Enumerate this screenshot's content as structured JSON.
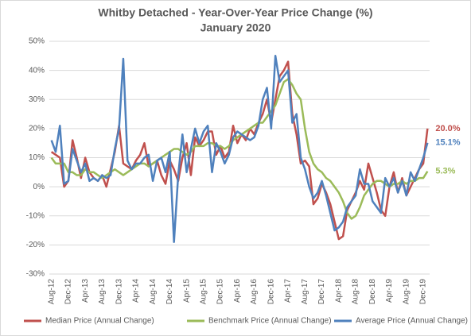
{
  "chart_data": {
    "type": "line",
    "title": "Whitby Detached - Year-Over-Year Price Change (%)",
    "subtitle": "January 2020",
    "categories": [
      "Aug-12",
      null,
      null,
      null,
      "Dec-12",
      null,
      null,
      null,
      "Apr-13",
      null,
      null,
      null,
      "Aug-13",
      null,
      null,
      null,
      "Dec-13",
      null,
      null,
      null,
      "Apr-14",
      null,
      null,
      null,
      "Aug-14",
      null,
      null,
      null,
      "Dec-14",
      null,
      null,
      null,
      "Apr-15",
      null,
      null,
      null,
      "Aug-15",
      null,
      null,
      null,
      "Dec-15",
      null,
      null,
      null,
      "Apr-16",
      null,
      null,
      null,
      "Aug-16",
      null,
      null,
      null,
      "Dec-16",
      null,
      null,
      null,
      "Apr-17",
      null,
      null,
      null,
      "Aug-17",
      null,
      null,
      null,
      "Dec-17",
      null,
      null,
      null,
      "Apr-18",
      null,
      null,
      null,
      "Aug-18",
      null,
      null,
      null,
      "Dec-18",
      null,
      null,
      null,
      "Apr-19",
      null,
      null,
      null,
      "Aug-19",
      null,
      null,
      null,
      "Dec-19",
      null
    ],
    "series": [
      {
        "name": "Median Price (Annual Change)",
        "color": "#c0504d",
        "values": [
          12,
          11,
          10,
          0,
          2,
          16,
          10,
          3,
          10,
          5,
          3,
          2,
          4,
          0,
          6,
          12,
          21,
          8,
          7,
          6,
          9,
          11,
          15,
          7,
          8,
          9,
          4,
          1,
          9,
          6,
          2,
          10,
          15,
          4,
          17,
          14,
          16,
          19,
          19,
          11,
          14,
          10,
          12,
          21,
          15,
          18,
          16,
          20,
          18,
          22,
          25,
          30,
          22,
          30,
          38,
          40,
          43,
          25,
          18,
          8,
          9,
          7,
          -6,
          -4,
          1,
          -2,
          -6,
          -12,
          -18,
          -17,
          -8,
          -5,
          -2,
          2,
          -1,
          8,
          3,
          -2,
          -8,
          -10,
          0,
          5,
          -2,
          3,
          -3,
          0,
          3,
          6,
          8,
          20.0
        ],
        "value_labels": [
          null,
          null,
          null,
          null,
          null,
          null,
          null,
          null,
          null,
          null,
          null,
          null,
          null,
          null,
          null,
          null,
          null,
          null,
          null,
          null,
          null,
          null,
          null,
          null,
          null,
          null,
          null,
          null,
          null,
          null,
          null,
          null,
          null,
          null,
          null,
          null,
          null,
          null,
          null,
          null,
          null,
          null,
          null,
          null,
          null,
          null,
          null,
          null,
          null,
          null,
          null,
          null,
          null,
          null,
          null,
          null,
          null,
          null,
          null,
          null,
          null,
          null,
          null,
          null,
          null,
          null,
          null,
          null,
          null,
          null,
          null,
          null,
          null,
          null,
          null,
          null,
          null,
          null,
          null,
          null,
          null,
          null,
          null,
          null,
          null,
          null,
          null,
          null,
          null,
          "20.0%"
        ]
      },
      {
        "name": "Benchmark Price (Annual Change)",
        "color": "#9bbb59",
        "values": [
          10,
          8,
          8,
          8,
          5,
          5,
          4,
          4,
          6,
          5,
          5,
          4,
          3,
          4,
          5,
          6,
          5,
          4,
          5,
          6,
          7,
          8,
          8,
          7,
          8,
          9,
          10,
          11,
          12,
          13,
          13,
          12,
          11,
          12,
          14,
          14,
          14,
          15,
          15,
          14,
          14,
          13,
          14,
          16,
          17,
          18,
          19,
          20,
          21,
          22,
          22,
          24,
          26,
          28,
          32,
          36,
          37,
          35,
          32,
          30,
          20,
          12,
          8,
          6,
          5,
          3,
          2,
          0,
          -2,
          -5,
          -9,
          -11,
          -10,
          -7,
          -3,
          -1,
          1,
          2,
          2,
          1,
          0,
          1,
          1,
          2,
          1,
          2,
          2,
          3,
          3,
          5.3
        ],
        "value_labels": [
          null,
          null,
          null,
          null,
          null,
          null,
          null,
          null,
          null,
          null,
          null,
          null,
          null,
          null,
          null,
          null,
          null,
          null,
          null,
          null,
          null,
          null,
          null,
          null,
          null,
          null,
          null,
          null,
          null,
          null,
          null,
          null,
          null,
          null,
          null,
          null,
          null,
          null,
          null,
          null,
          null,
          null,
          null,
          null,
          null,
          null,
          null,
          null,
          null,
          null,
          null,
          null,
          null,
          null,
          null,
          null,
          null,
          null,
          null,
          null,
          null,
          null,
          null,
          null,
          null,
          null,
          null,
          null,
          null,
          null,
          null,
          null,
          null,
          null,
          null,
          null,
          null,
          null,
          null,
          null,
          null,
          null,
          null,
          null,
          null,
          null,
          null,
          null,
          null,
          "5.3%"
        ]
      },
      {
        "name": "Average Price (Annual Change)",
        "color": "#4f81bd",
        "values": [
          16,
          12,
          21,
          1,
          2,
          13,
          9,
          5,
          8,
          2,
          3,
          2,
          4,
          3,
          4,
          13,
          20,
          44,
          9,
          6,
          8,
          8,
          10,
          11,
          2,
          9,
          10,
          5,
          12,
          -19,
          4,
          18,
          5,
          13,
          20,
          15,
          19,
          21,
          5,
          15,
          12,
          8,
          11,
          17,
          19,
          18,
          17,
          16,
          17,
          21,
          30,
          34,
          20,
          45,
          36,
          38,
          40,
          22,
          25,
          10,
          6,
          0,
          -4,
          -2,
          2,
          -3,
          -9,
          -15,
          -14,
          -12,
          -7,
          -5,
          -3,
          6,
          1,
          1,
          -5,
          -7,
          -9,
          3,
          0,
          3,
          -2,
          2,
          -3,
          5,
          2,
          6,
          10,
          15.1
        ],
        "value_labels": [
          null,
          null,
          null,
          null,
          null,
          null,
          null,
          null,
          null,
          null,
          null,
          null,
          null,
          null,
          null,
          null,
          null,
          null,
          null,
          null,
          null,
          null,
          null,
          null,
          null,
          null,
          null,
          null,
          null,
          null,
          null,
          null,
          null,
          null,
          null,
          null,
          null,
          null,
          null,
          null,
          null,
          null,
          null,
          null,
          null,
          null,
          null,
          null,
          null,
          null,
          null,
          null,
          null,
          null,
          null,
          null,
          null,
          null,
          null,
          null,
          null,
          null,
          null,
          null,
          null,
          null,
          null,
          null,
          null,
          null,
          null,
          null,
          null,
          null,
          null,
          null,
          null,
          null,
          null,
          null,
          null,
          null,
          null,
          null,
          null,
          null,
          null,
          null,
          null,
          "15.1%"
        ]
      }
    ],
    "ylim": [
      -30,
      50
    ],
    "yticks": [
      {
        "value": -30,
        "label": "-30%"
      },
      {
        "value": -20,
        "label": "-20%"
      },
      {
        "value": -10,
        "label": "-10%"
      },
      {
        "value": 0,
        "label": "0%"
      },
      {
        "value": 10,
        "label": "10%"
      },
      {
        "value": 20,
        "label": "20%"
      },
      {
        "value": 30,
        "label": "30%"
      },
      {
        "value": 40,
        "label": "40%"
      },
      {
        "value": 50,
        "label": "50%"
      }
    ],
    "grid": true,
    "legend": "bottom"
  }
}
